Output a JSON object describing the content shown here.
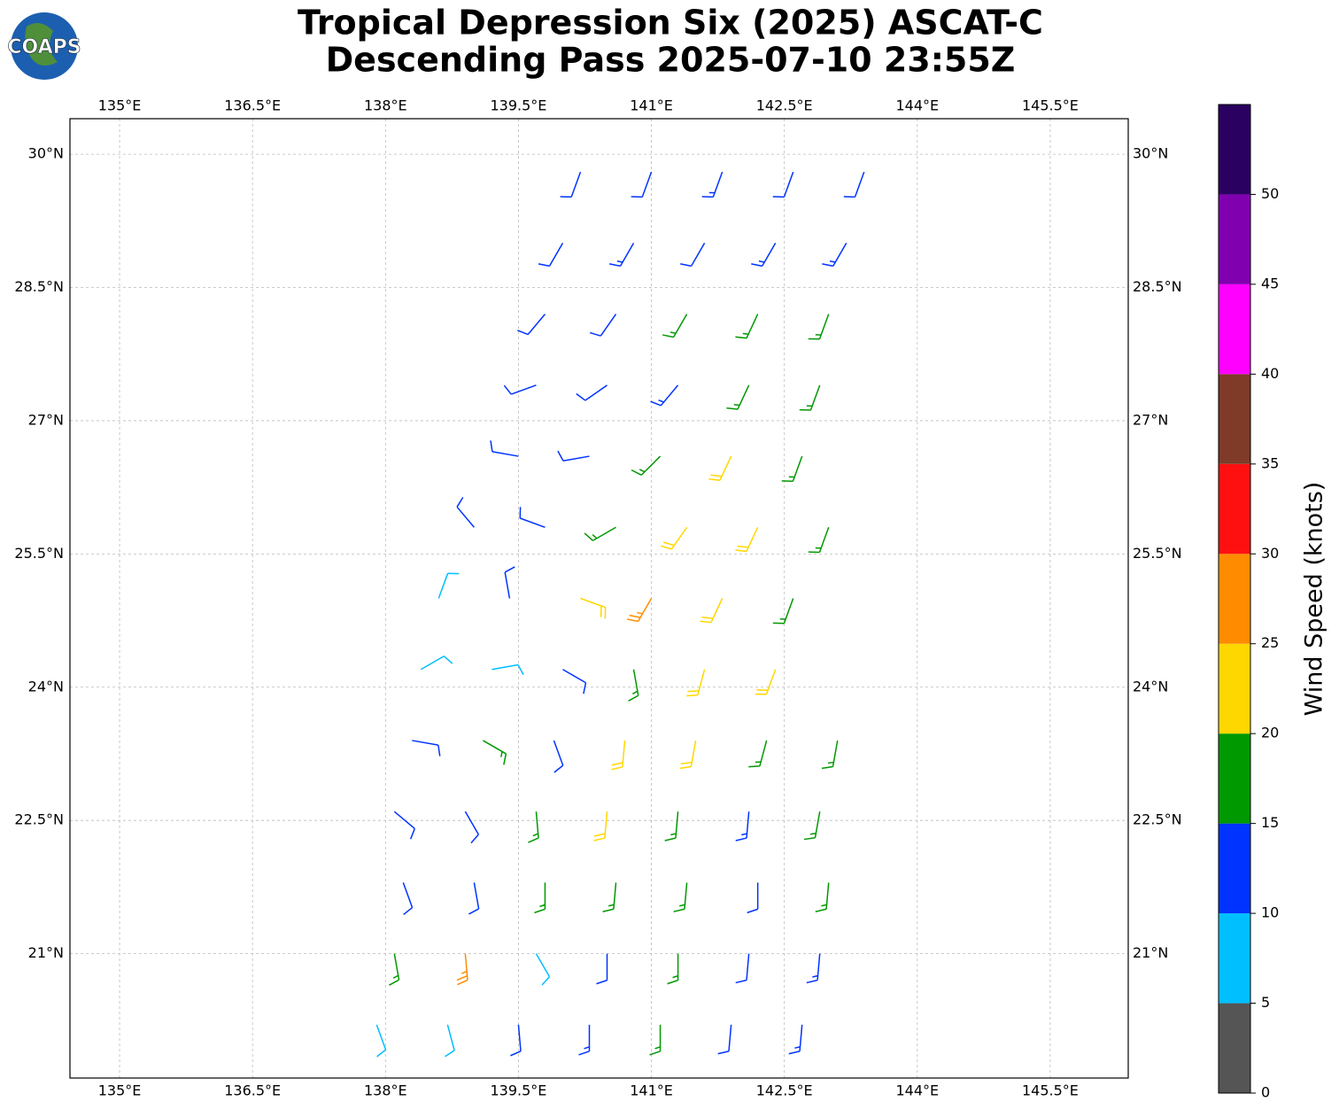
{
  "map": {
    "logo": "COAPS",
    "title": [
      "Tropical Depression Six (2025) ASCAT-C",
      "Descending Pass 2025-07-10 23:55Z"
    ],
    "xlim": [
      134.44,
      146.38
    ],
    "ylim": [
      19.6,
      30.4
    ],
    "xticks": [
      {
        "value": 135,
        "label": "135°E"
      },
      {
        "value": 136.5,
        "label": "136.5°E"
      },
      {
        "value": 138,
        "label": "138°E"
      },
      {
        "value": 139.5,
        "label": "139.5°E"
      },
      {
        "value": 141,
        "label": "141°E"
      },
      {
        "value": 142.5,
        "label": "142.5°E"
      },
      {
        "value": 144,
        "label": "144°E"
      },
      {
        "value": 145.5,
        "label": "145.5°E"
      }
    ],
    "yticks": [
      {
        "value": 21,
        "label": "21°N"
      },
      {
        "value": 22.5,
        "label": "22.5°N"
      },
      {
        "value": 24,
        "label": "24°N"
      },
      {
        "value": 25.5,
        "label": "25.5°N"
      },
      {
        "value": 27,
        "label": "27°N"
      },
      {
        "value": 28.5,
        "label": "28.5°N"
      },
      {
        "value": 30,
        "label": "30°N"
      }
    ],
    "grid": true,
    "barbs": {
      "lon": [
        140.2,
        141.0,
        141.8,
        142.6,
        143.4,
        140.0,
        140.8,
        141.6,
        142.4,
        143.2,
        139.8,
        140.6,
        141.4,
        142.2,
        143.0,
        139.7,
        140.5,
        141.3,
        142.1,
        142.9,
        139.5,
        140.3,
        141.1,
        141.9,
        142.7,
        139.0,
        139.8,
        140.6,
        141.4,
        142.2,
        143.0,
        138.6,
        139.4,
        140.2,
        141.0,
        141.8,
        142.6,
        138.4,
        139.2,
        140.0,
        140.8,
        141.6,
        142.4,
        138.3,
        139.1,
        139.9,
        140.7,
        141.5,
        142.3,
        143.1,
        138.1,
        138.9,
        139.7,
        140.5,
        141.3,
        142.1,
        142.9,
        138.2,
        139.0,
        139.8,
        140.6,
        141.4,
        142.2,
        143.0,
        138.1,
        138.9,
        139.7,
        140.5,
        141.3,
        142.1,
        142.9,
        137.9,
        138.7,
        139.5,
        140.3,
        141.1,
        141.9,
        142.7
      ],
      "lat": [
        29.8,
        29.8,
        29.8,
        29.8,
        29.8,
        29.0,
        29.0,
        29.0,
        29.0,
        29.0,
        28.2,
        28.2,
        28.2,
        28.2,
        28.2,
        27.4,
        27.4,
        27.4,
        27.4,
        27.4,
        26.6,
        26.6,
        26.6,
        26.6,
        26.6,
        25.8,
        25.8,
        25.8,
        25.8,
        25.8,
        25.8,
        25.0,
        25.0,
        25.0,
        25.0,
        25.0,
        25.0,
        24.2,
        24.2,
        24.2,
        24.2,
        24.2,
        24.2,
        23.4,
        23.4,
        23.4,
        23.4,
        23.4,
        23.4,
        23.4,
        22.6,
        22.6,
        22.6,
        22.6,
        22.6,
        22.6,
        22.6,
        21.8,
        21.8,
        21.8,
        21.8,
        21.8,
        21.8,
        21.8,
        21.0,
        21.0,
        21.0,
        21.0,
        21.0,
        21.0,
        21.0,
        20.2,
        20.2,
        20.2,
        20.2,
        20.2,
        20.2,
        20.2
      ],
      "speed": [
        12,
        12,
        13,
        12,
        12,
        12,
        13,
        12,
        14,
        13,
        12,
        12,
        16,
        17,
        17,
        12,
        12,
        14,
        17,
        17,
        11,
        12,
        17,
        22,
        17,
        10,
        11,
        17,
        22,
        22,
        17,
        8,
        12,
        22,
        27,
        22,
        17,
        8,
        8,
        12,
        17,
        22,
        22,
        12,
        17,
        12,
        22,
        22,
        17,
        15,
        12,
        12,
        17,
        22,
        17,
        13,
        17,
        12,
        12,
        17,
        17,
        17,
        12,
        17,
        17,
        27,
        8,
        12,
        17,
        12,
        13,
        8,
        8,
        12,
        13,
        17,
        12,
        13
      ],
      "direction": [
        200,
        200,
        200,
        200,
        200,
        210,
        210,
        210,
        210,
        210,
        220,
        215,
        210,
        205,
        200,
        250,
        235,
        220,
        205,
        200,
        280,
        260,
        225,
        205,
        200,
        320,
        290,
        240,
        215,
        205,
        200,
        20,
        350,
        110,
        210,
        205,
        200,
        60,
        80,
        120,
        170,
        195,
        200,
        100,
        120,
        160,
        185,
        190,
        195,
        190,
        130,
        150,
        175,
        185,
        185,
        185,
        190,
        160,
        170,
        180,
        185,
        185,
        180,
        185,
        170,
        175,
        150,
        180,
        180,
        185,
        185,
        160,
        165,
        175,
        180,
        180,
        185,
        185
      ]
    },
    "colorbar": {
      "label": "Wind Speed (knots)",
      "levels": [
        0,
        5,
        10,
        15,
        20,
        25,
        30,
        35,
        40,
        45,
        50,
        55
      ],
      "colors": [
        "#555555",
        "#00bfff",
        "#0033ff",
        "#009900",
        "#ffd700",
        "#ff8c00",
        "#ff1010",
        "#7f3a28",
        "#ff00ff",
        "#8000b0",
        "#2a0060"
      ],
      "ticks": [
        0,
        5,
        10,
        15,
        20,
        25,
        30,
        35,
        40,
        45,
        50
      ]
    }
  }
}
